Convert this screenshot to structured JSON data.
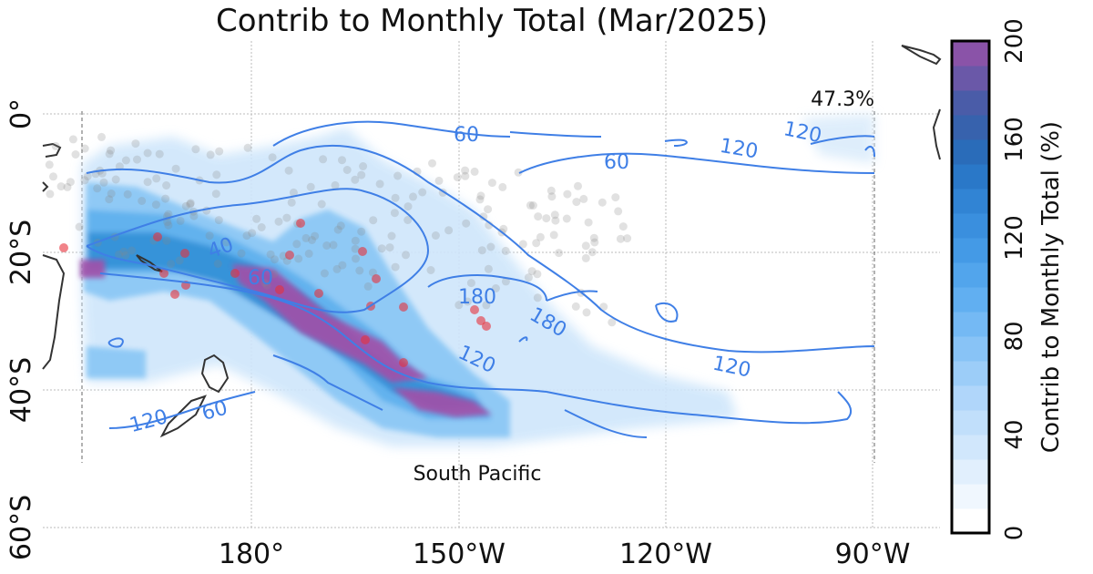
{
  "title": "Contrib to Monthly Total (Mar/2025)",
  "region_label": "South Pacific",
  "percent_label": "47.3%",
  "x_ticks": [
    "180°",
    "150°W",
    "120°W",
    "90°W"
  ],
  "y_ticks": [
    "0°",
    "20°S",
    "40°S",
    "60°S"
  ],
  "colorbar": {
    "label": "Contrib to Monthly Total (%)",
    "ticks": [
      "0",
      "40",
      "80",
      "120",
      "160",
      "200"
    ],
    "min": 0,
    "max": 200,
    "step": 10
  },
  "contour_labels": [
    "60",
    "60",
    "120",
    "120",
    "40",
    "60",
    "180",
    "180",
    "120",
    "120",
    "120",
    "60"
  ],
  "colors": {
    "contour": "#3f7fe6",
    "coast": "#333333",
    "grid": "#bbbbbb",
    "red_dots": "#e8303a",
    "gray_dots": "#888888",
    "magenta": "#a24fa8"
  }
}
